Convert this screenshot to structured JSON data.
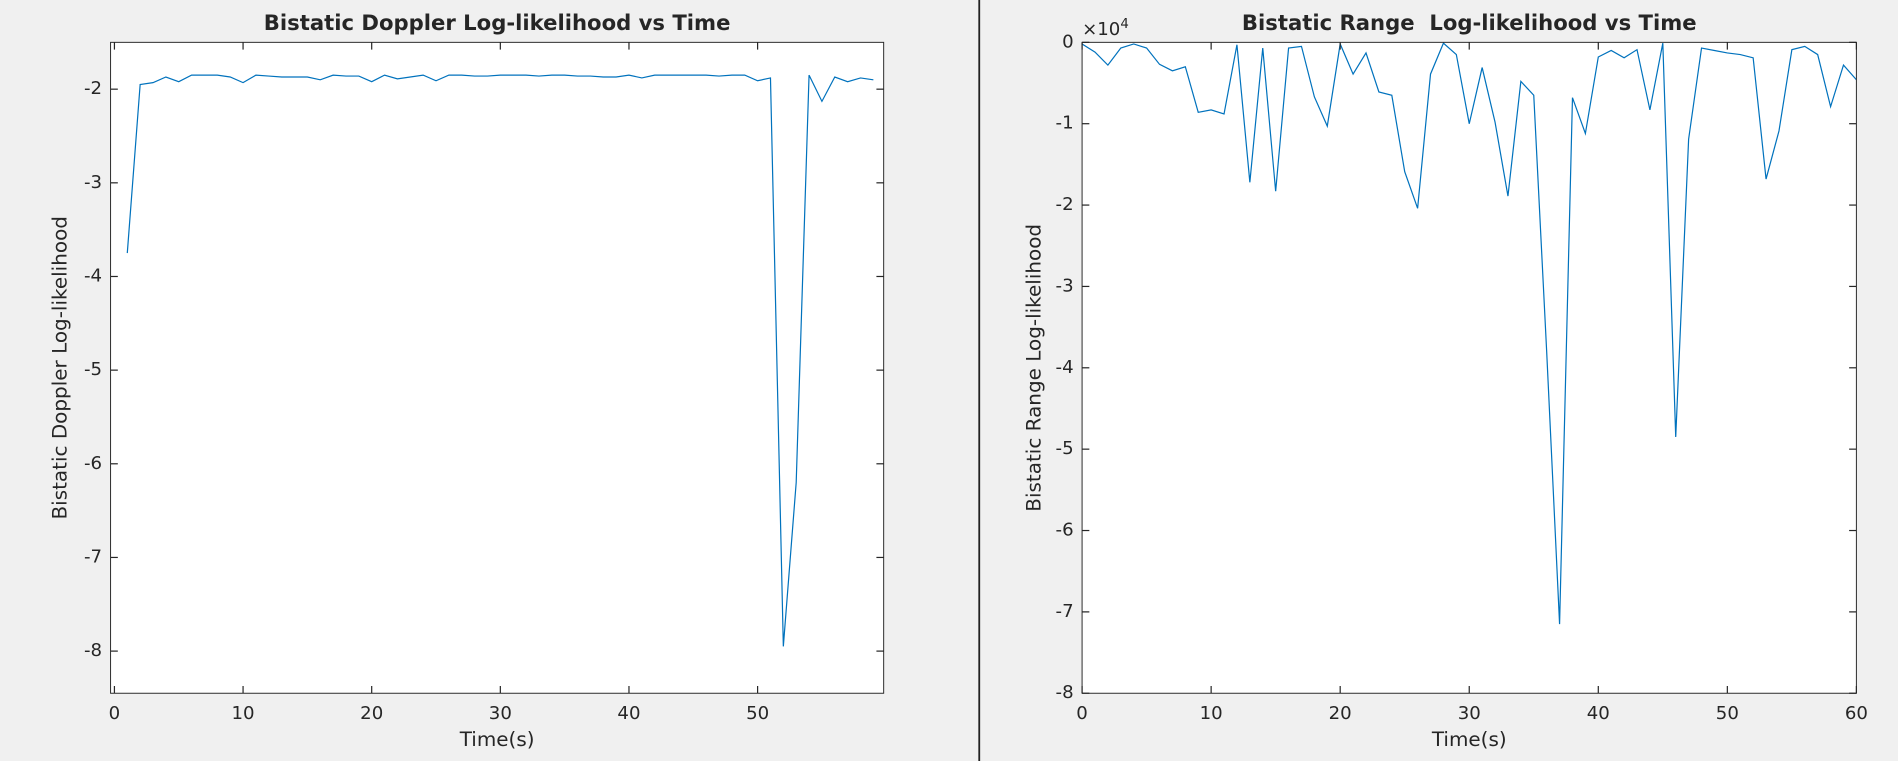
{
  "chart_data": [
    {
      "type": "line",
      "title": "Bistatic Doppler Log-likelihood vs Time",
      "xlabel": "Time(s)",
      "ylabel": "Bistatic Doppler Log-likelihood",
      "xlim": [
        -0.3,
        59.8
      ],
      "ylim": [
        -8.45,
        -1.5
      ],
      "xticks": [
        0,
        10,
        20,
        30,
        40,
        50
      ],
      "yticks": [
        -8,
        -7,
        -6,
        -5,
        -4,
        -3,
        -2
      ],
      "x": [
        1,
        2,
        3,
        4,
        5,
        6,
        7,
        8,
        9,
        10,
        11,
        12,
        13,
        14,
        15,
        16,
        17,
        18,
        19,
        20,
        21,
        22,
        23,
        24,
        25,
        26,
        27,
        28,
        29,
        30,
        31,
        32,
        33,
        34,
        35,
        36,
        37,
        38,
        39,
        40,
        41,
        42,
        43,
        44,
        45,
        46,
        47,
        48,
        49,
        50,
        51,
        52,
        53,
        54,
        55,
        56,
        57,
        58,
        59
      ],
      "series": [
        {
          "color": "#0072bd",
          "values": [
            -3.75,
            -1.95,
            -1.93,
            -1.87,
            -1.92,
            -1.85,
            -1.85,
            -1.85,
            -1.87,
            -1.93,
            -1.85,
            -1.86,
            -1.87,
            -1.87,
            -1.87,
            -1.9,
            -1.85,
            -1.86,
            -1.86,
            -1.92,
            -1.85,
            -1.89,
            -1.87,
            -1.85,
            -1.91,
            -1.85,
            -1.85,
            -1.86,
            -1.86,
            -1.85,
            -1.85,
            -1.85,
            -1.86,
            -1.85,
            -1.85,
            -1.86,
            -1.86,
            -1.87,
            -1.87,
            -1.85,
            -1.88,
            -1.85,
            -1.85,
            -1.85,
            -1.85,
            -1.85,
            -1.86,
            -1.85,
            -1.85,
            -1.91,
            -1.88,
            -7.95,
            -6.2,
            -1.85,
            -2.13,
            -1.87,
            -1.92,
            -1.88,
            -1.9
          ]
        }
      ]
    },
    {
      "type": "line",
      "title": "Bistatic Range  Log-likelihood vs Time",
      "xlabel": "Time(s)",
      "ylabel": "Bistatic Range Log-likelihood",
      "y_exponent_base": "×10",
      "y_exponent": "4",
      "xlim": [
        0,
        60
      ],
      "ylim": [
        -8,
        0
      ],
      "xticks": [
        0,
        10,
        20,
        30,
        40,
        50,
        60
      ],
      "yticks": [
        -8,
        -7,
        -6,
        -5,
        -4,
        -3,
        -2,
        -1,
        0
      ],
      "x": [
        0,
        1,
        2,
        3,
        4,
        5,
        6,
        7,
        8,
        9,
        10,
        11,
        12,
        13,
        14,
        15,
        16,
        17,
        18,
        19,
        20,
        21,
        22,
        23,
        24,
        25,
        26,
        27,
        28,
        29,
        30,
        31,
        32,
        33,
        34,
        35,
        36,
        37,
        38,
        39,
        40,
        41,
        42,
        43,
        44,
        45,
        46,
        47,
        48,
        49,
        50,
        51,
        52,
        53,
        54,
        55,
        56,
        57,
        58,
        59,
        60
      ],
      "series": [
        {
          "color": "#0072bd",
          "values": [
            -0.02,
            -0.12,
            -0.28,
            -0.07,
            -0.02,
            -0.07,
            -0.27,
            -0.35,
            -0.3,
            -0.86,
            -0.83,
            -0.88,
            -0.03,
            -1.72,
            -0.07,
            -1.83,
            -0.07,
            -0.05,
            -0.67,
            -1.03,
            -0.02,
            -0.39,
            -0.13,
            -0.61,
            -0.65,
            -1.59,
            -2.04,
            -0.39,
            -0.01,
            -0.15,
            -1.0,
            -0.31,
            -0.98,
            -1.89,
            -0.48,
            -0.65,
            -3.8,
            -7.15,
            -0.68,
            -1.12,
            -0.18,
            -0.1,
            -0.19,
            -0.09,
            -0.83,
            -0.01,
            -4.85,
            -1.19,
            -0.07,
            -0.1,
            -0.13,
            -0.15,
            -0.19,
            -1.68,
            -1.09,
            -0.09,
            -0.05,
            -0.15,
            -0.79,
            -0.28,
            -0.46
          ]
        }
      ]
    }
  ]
}
